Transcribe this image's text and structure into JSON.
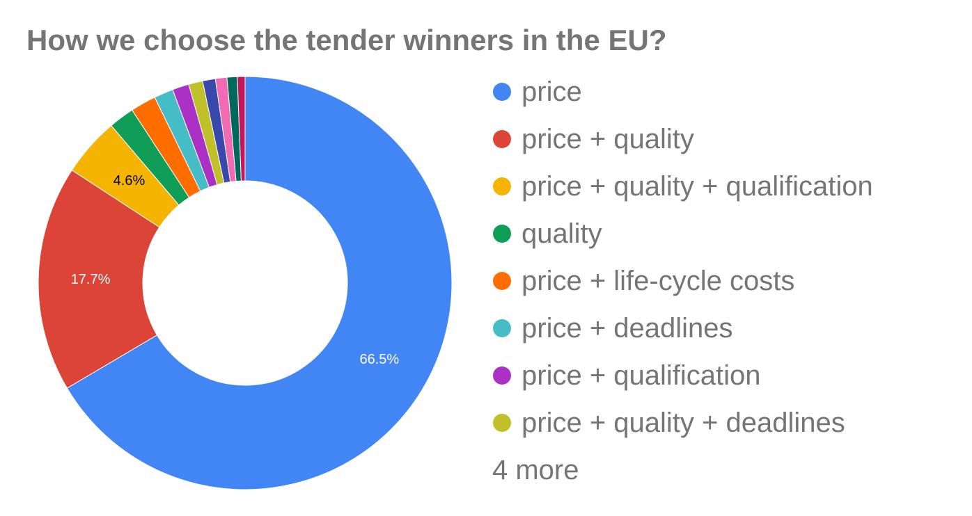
{
  "chart_data": {
    "type": "pie",
    "donut": true,
    "title": "How we choose the tender winners in the EU?",
    "slices": [
      {
        "label": "price",
        "value": 66.5,
        "color": "#4285f4",
        "data_label": "66.5%",
        "label_color": "#ffffff"
      },
      {
        "label": "price + quality",
        "value": 17.7,
        "color": "#db4437",
        "data_label": "17.7%",
        "label_color": "#ffffff"
      },
      {
        "label": "price + quality + qualification",
        "value": 4.6,
        "color": "#f4b400",
        "data_label": "4.6%",
        "label_color": "#000000"
      },
      {
        "label": "quality",
        "value": 2.0,
        "color": "#0f9d58",
        "data_label": "",
        "label_color": "#ffffff"
      },
      {
        "label": "price + life-cycle costs",
        "value": 2.0,
        "color": "#ff6d00",
        "data_label": "",
        "label_color": "#ffffff"
      },
      {
        "label": "price + deadlines",
        "value": 1.5,
        "color": "#46bdc6",
        "data_label": "",
        "label_color": "#ffffff"
      },
      {
        "label": "price + qualification",
        "value": 1.3,
        "color": "#ab30c4",
        "data_label": "",
        "label_color": "#ffffff"
      },
      {
        "label": "price + quality + deadlines",
        "value": 1.1,
        "color": "#c0c12a",
        "data_label": "",
        "label_color": "#ffffff"
      },
      {
        "label": "",
        "value": 1.0,
        "color": "#3949ab",
        "data_label": "",
        "label_color": "#ffffff"
      },
      {
        "label": "",
        "value": 0.9,
        "color": "#f06bb2",
        "data_label": "",
        "label_color": "#ffffff"
      },
      {
        "label": "",
        "value": 0.8,
        "color": "#00695c",
        "data_label": "",
        "label_color": "#ffffff"
      },
      {
        "label": "",
        "value": 0.6,
        "color": "#c2185b",
        "data_label": "",
        "label_color": "#ffffff"
      }
    ],
    "legend_placement": "right",
    "legend_more": "4 more"
  }
}
